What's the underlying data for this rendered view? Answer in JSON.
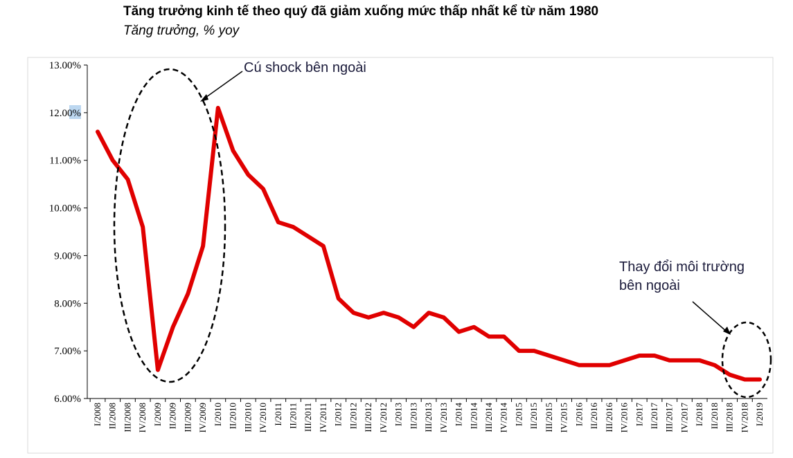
{
  "header": {
    "title": "Tăng trưởng kinh tế theo quý đã giảm xuống mức thấp nhất kể từ năm 1980",
    "subtitle": "Tăng trưởng, % yoy"
  },
  "colors": {
    "line": "#e00000",
    "axis": "#000000",
    "frame": "#d9d9d9",
    "ellipse": "#000000",
    "annotation_text": "#1a1a3a",
    "highlight": "#bcd7f0"
  },
  "chart_data": {
    "type": "line",
    "title": "Tăng trưởng kinh tế theo quý đã giảm xuống mức thấp nhất kể từ năm 1980",
    "subtitle": "Tăng trưởng, % yoy",
    "xlabel": "",
    "ylabel": "",
    "ylim": [
      6,
      13
    ],
    "y_ticks": [
      6,
      7,
      8,
      9,
      10,
      11,
      12,
      13
    ],
    "y_tick_labels": [
      "6.00%",
      "7.00%",
      "8.00%",
      "9.00%",
      "10.00%",
      "11.00%",
      "12.00%",
      "13.00%"
    ],
    "grid": false,
    "legend": "none",
    "categories": [
      "I/2008",
      "II/2008",
      "III/2008",
      "IV/2008",
      "I/2009",
      "II/2009",
      "III/2009",
      "IV/2009",
      "I/2010",
      "II/2010",
      "III/2010",
      "IV/2010",
      "I/2011",
      "II/2011",
      "III/2011",
      "IV/2011",
      "I/2012",
      "II/2012",
      "III/2012",
      "IV/2012",
      "I/2013",
      "II/2013",
      "III/2013",
      "IV/2013",
      "I/2014",
      "II/2014",
      "III/2014",
      "IV/2014",
      "I/2015",
      "II/2015",
      "III/2015",
      "IV/2015",
      "I/2016",
      "II/2016",
      "III/2016",
      "IV/2016",
      "I/2017",
      "II/2017",
      "III/2017",
      "IV/2017",
      "I/2018",
      "II/2018",
      "III/2018",
      "IV/2018",
      "I/2019"
    ],
    "series": [
      {
        "values": [
          11.6,
          11.0,
          10.6,
          9.6,
          6.6,
          7.5,
          8.2,
          9.2,
          12.1,
          11.2,
          10.7,
          10.4,
          9.7,
          9.6,
          9.4,
          9.2,
          8.1,
          7.8,
          7.7,
          7.8,
          7.7,
          7.5,
          7.8,
          7.7,
          7.4,
          7.5,
          7.3,
          7.3,
          7.0,
          7.0,
          6.9,
          6.8,
          6.7,
          6.7,
          6.7,
          6.8,
          6.9,
          6.9,
          6.8,
          6.8,
          6.8,
          6.7,
          6.5,
          6.4,
          6.4
        ]
      }
    ],
    "annotations": [
      {
        "text": "Cú shock bên ngoài",
        "target_category": "II/2009"
      },
      {
        "text": "Thay đổi môi trường bên ngoài",
        "target_category": "IV/2018"
      }
    ]
  }
}
